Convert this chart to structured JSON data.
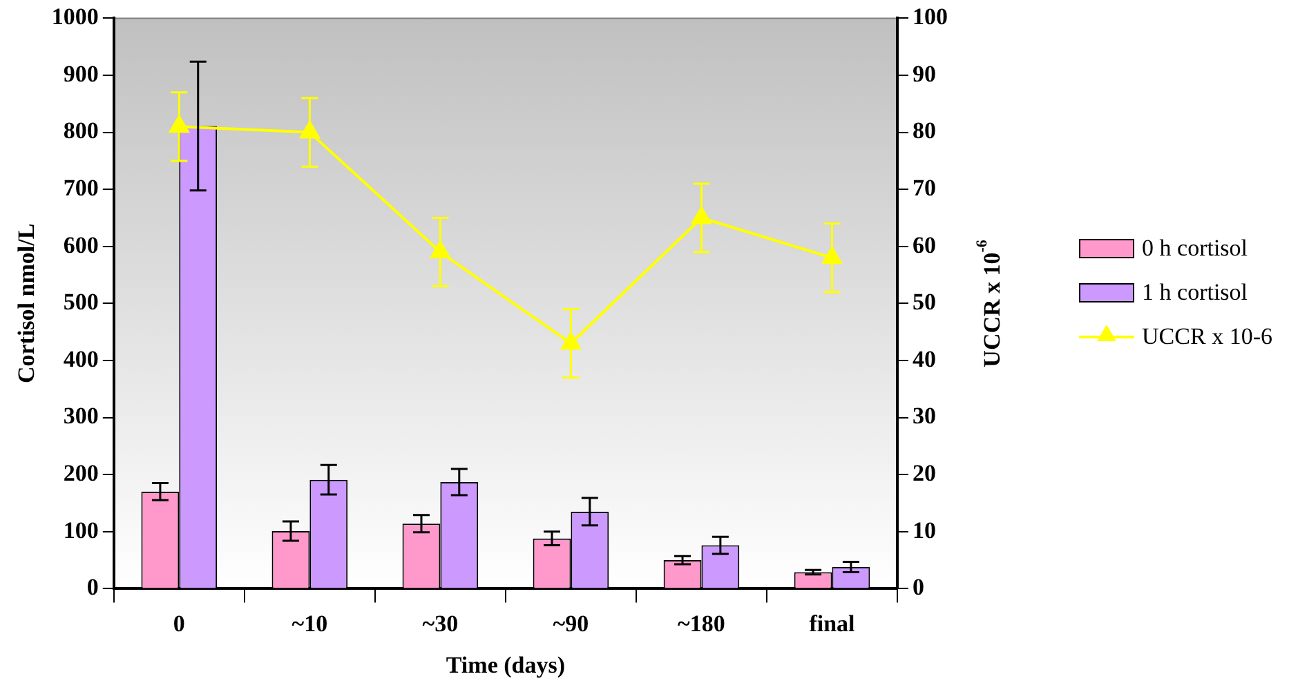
{
  "chart_data": {
    "type": "bar",
    "xlabel": "Time (days)",
    "ylabel": "Cortisol nmol/L",
    "y2label": "UCCR x 10$^{-6}$",
    "categories": [
      "0",
      "~10",
      "~30",
      "~90",
      "~180",
      "final"
    ],
    "series": [
      {
        "name": "0 h cortisol",
        "color": "#ff99cc",
        "values": [
          170,
          101,
          114,
          88,
          50,
          29
        ],
        "errors": [
          15,
          17,
          15,
          12,
          7,
          4
        ]
      },
      {
        "name": "1 h cortisol",
        "color": "#cc99ff",
        "values": [
          811,
          191,
          187,
          135,
          76,
          38
        ],
        "errors": [
          113,
          26,
          23,
          24,
          15,
          9
        ]
      },
      {
        "name": "UCCR x 10-6",
        "type": "line",
        "axis": "y2",
        "color": "#ffff00",
        "values": [
          81,
          80,
          59,
          43,
          65,
          58
        ],
        "errors": [
          6,
          6,
          6,
          6,
          6,
          6
        ]
      }
    ],
    "ylim": [
      0,
      1000
    ],
    "yticks": [
      0,
      100,
      200,
      300,
      400,
      500,
      600,
      700,
      800,
      900,
      1000
    ],
    "y2lim": [
      0,
      100
    ],
    "y2ticks": [
      0,
      10,
      20,
      30,
      40,
      50,
      60,
      70,
      80,
      90,
      100
    ],
    "grid": false,
    "legend": "right",
    "marker": "triangle",
    "line_style": "solid"
  }
}
